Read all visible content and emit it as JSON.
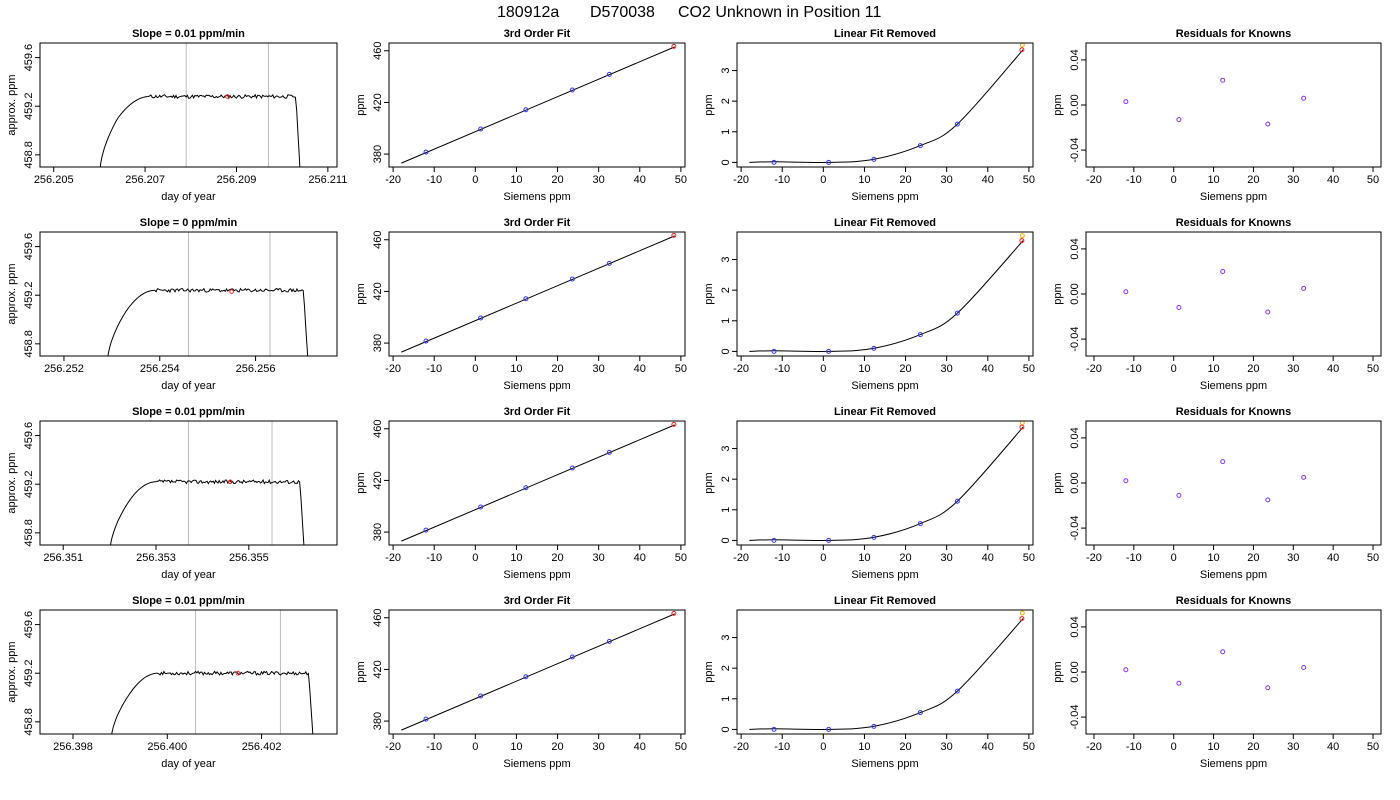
{
  "header": {
    "run_id": "180912a",
    "tank_id": "D570038",
    "description": "CO2 Unknown in Position  11"
  },
  "colors": {
    "curve": "#000000",
    "known_points": "#3333ff",
    "residual_points": "#8833ff",
    "unknown_fit": "#ff2222",
    "unknown_point": "#ffb000",
    "vertical_lines": "#bbbbbb",
    "frame": "#000000"
  },
  "chart_data": [
    {
      "type": "line",
      "panel": "trace",
      "row": 0,
      "title": "Slope =  0.01  ppm/min",
      "xlabel": "day of year",
      "ylabel": "approx. ppm",
      "xlim": [
        256.2047,
        256.2112
      ],
      "ylim": [
        458.7,
        459.72
      ],
      "xticks": [
        256.205,
        256.207,
        256.209,
        256.211
      ],
      "xtick_labels": [
        "256.205",
        "256.207",
        "256.209",
        "256.211"
      ],
      "yticks": [
        458.8,
        459.2,
        459.6
      ],
      "ytick_labels": [
        "458.8",
        "459.2",
        "459.6"
      ],
      "vlines": [
        256.2079,
        256.2097
      ],
      "marker": {
        "x": 256.2088,
        "y": 459.28
      },
      "trace": {
        "start": 256.206,
        "rise_end": 256.2064,
        "plateau_start": 256.2071,
        "plateau_end": 256.2103,
        "end": 256.2104,
        "low": 458.62,
        "shoulder": 459.1,
        "plateau": 459.28,
        "seed": 11
      }
    },
    {
      "type": "line",
      "panel": "fit",
      "row": 0,
      "title": "3rd Order Fit",
      "xlabel": "Siemens ppm",
      "ylabel": "ppm",
      "xlim": [
        -21,
        51
      ],
      "ylim": [
        370,
        466
      ],
      "xticks": [
        -20,
        -10,
        0,
        10,
        20,
        30,
        40,
        50
      ],
      "xtick_labels": [
        "-20",
        "-10",
        "0",
        "10",
        "20",
        "30",
        "40",
        "50"
      ],
      "yticks": [
        380,
        420,
        460
      ],
      "ytick_labels": [
        "380",
        "420",
        "460"
      ],
      "line": {
        "x1": -18,
        "y1": 373,
        "x2": 48.5,
        "y2": 463
      },
      "known_x": [
        -12,
        1.3,
        12.3,
        23.6,
        32.6
      ],
      "known_y": [
        381.5,
        399.4,
        414.3,
        429.6,
        441.7
      ],
      "unknown": {
        "x": 48.3,
        "y": 463.4
      }
    },
    {
      "type": "line",
      "panel": "linear_removed",
      "row": 0,
      "title": "Linear Fit Removed",
      "xlabel": "Siemens ppm",
      "ylabel": "ppm",
      "xlim": [
        -21,
        51
      ],
      "ylim": [
        -0.15,
        3.9
      ],
      "xticks": [
        -20,
        -10,
        0,
        10,
        20,
        30,
        40,
        50
      ],
      "xtick_labels": [
        "-20",
        "-10",
        "0",
        "10",
        "20",
        "30",
        "40",
        "50"
      ],
      "yticks": [
        0,
        1,
        2,
        3
      ],
      "ytick_labels": [
        "0",
        "1",
        "2",
        "3"
      ],
      "curve_x": [
        -18,
        -12,
        1.3,
        12.3,
        23.6,
        32.6,
        48.6
      ],
      "curve_y": [
        0.0,
        0.02,
        0.0,
        0.1,
        0.55,
        1.25,
        3.68
      ],
      "known_x": [
        -12,
        1.3,
        12.3,
        23.6,
        32.6
      ],
      "known_y": [
        0.0,
        0.0,
        0.1,
        0.55,
        1.25
      ],
      "unknown": {
        "x": 48.3,
        "y": 3.68
      },
      "unknown_open": {
        "x": 48.4,
        "y": 3.83
      }
    },
    {
      "type": "scatter",
      "panel": "residuals",
      "row": 0,
      "title": "Residuals for Knowns",
      "xlabel": "Siemens ppm",
      "ylabel": "ppm",
      "xlim": [
        -22,
        52
      ],
      "ylim": [
        -0.055,
        0.055
      ],
      "xticks": [
        -20,
        -10,
        0,
        10,
        20,
        30,
        40,
        50
      ],
      "xtick_labels": [
        "-20",
        "-10",
        "0",
        "10",
        "20",
        "30",
        "40",
        "50"
      ],
      "yticks": [
        -0.04,
        0.0,
        0.04
      ],
      "ytick_labels": [
        "-0.04",
        "0.00",
        "0.04"
      ],
      "x": [
        -12,
        1.3,
        12.3,
        23.6,
        32.6
      ],
      "y": [
        0.003,
        -0.013,
        0.022,
        -0.017,
        0.006
      ]
    },
    {
      "type": "line",
      "panel": "trace",
      "row": 1,
      "title": "Slope =  0  ppm/min",
      "xlabel": "day of year",
      "ylabel": "approx. ppm",
      "xlim": [
        256.2515,
        256.2577
      ],
      "ylim": [
        458.7,
        459.72
      ],
      "xticks": [
        256.252,
        256.254,
        256.256
      ],
      "xtick_labels": [
        "256.252",
        "256.254",
        "256.256"
      ],
      "vlines": [
        256.2546,
        256.2563
      ],
      "marker": {
        "x": 256.2555,
        "y": 459.23
      },
      "yticks": [
        458.8,
        459.2,
        459.6
      ],
      "ytick_labels": [
        "458.8",
        "459.2",
        "459.6"
      ],
      "trace": {
        "start": 256.2529,
        "rise_end": 256.2533,
        "plateau_start": 256.2539,
        "plateau_end": 256.257,
        "end": 256.2571,
        "low": 458.62,
        "shoulder": 459.07,
        "plateau": 459.24,
        "seed": 23
      }
    },
    {
      "type": "line",
      "panel": "fit",
      "row": 1,
      "title": "3rd Order Fit",
      "xlabel": "Siemens ppm",
      "ylabel": "ppm",
      "xlim": [
        -21,
        51
      ],
      "ylim": [
        370,
        466
      ],
      "xticks": [
        -20,
        -10,
        0,
        10,
        20,
        30,
        40,
        50
      ],
      "xtick_labels": [
        "-20",
        "-10",
        "0",
        "10",
        "20",
        "30",
        "40",
        "50"
      ],
      "yticks": [
        380,
        420,
        460
      ],
      "ytick_labels": [
        "380",
        "420",
        "460"
      ],
      "line": {
        "x1": -18,
        "y1": 373,
        "x2": 48.5,
        "y2": 463
      },
      "known_x": [
        -12,
        1.3,
        12.3,
        23.6,
        32.6
      ],
      "known_y": [
        381.5,
        399.4,
        414.3,
        429.6,
        441.7
      ],
      "unknown": {
        "x": 48.3,
        "y": 463.4
      }
    },
    {
      "type": "line",
      "panel": "linear_removed",
      "row": 1,
      "title": "Linear Fit Removed",
      "xlabel": "Siemens ppm",
      "ylabel": "ppm",
      "xlim": [
        -21,
        51
      ],
      "ylim": [
        -0.15,
        3.9
      ],
      "xticks": [
        -20,
        -10,
        0,
        10,
        20,
        30,
        40,
        50
      ],
      "xtick_labels": [
        "-20",
        "-10",
        "0",
        "10",
        "20",
        "30",
        "40",
        "50"
      ],
      "yticks": [
        0,
        1,
        2,
        3
      ],
      "ytick_labels": [
        "0",
        "1",
        "2",
        "3"
      ],
      "curve_x": [
        -18,
        -12,
        1.3,
        12.3,
        23.6,
        32.6,
        48.6
      ],
      "curve_y": [
        0.0,
        0.02,
        0.0,
        0.1,
        0.55,
        1.25,
        3.62
      ],
      "known_x": [
        -12,
        1.3,
        12.3,
        23.6,
        32.6
      ],
      "known_y": [
        0.0,
        0.0,
        0.1,
        0.55,
        1.25
      ],
      "unknown": {
        "x": 48.3,
        "y": 3.62
      },
      "unknown_open": {
        "x": 48.4,
        "y": 3.78
      }
    },
    {
      "type": "scatter",
      "panel": "residuals",
      "row": 1,
      "title": "Residuals for Knowns",
      "xlabel": "Siemens ppm",
      "ylabel": "ppm",
      "xlim": [
        -22,
        52
      ],
      "ylim": [
        -0.055,
        0.055
      ],
      "xticks": [
        -20,
        -10,
        0,
        10,
        20,
        30,
        40,
        50
      ],
      "xtick_labels": [
        "-20",
        "-10",
        "0",
        "10",
        "20",
        "30",
        "40",
        "50"
      ],
      "yticks": [
        -0.04,
        0.0,
        0.04
      ],
      "ytick_labels": [
        "-0.04",
        "0.00",
        "0.04"
      ],
      "x": [
        -12,
        1.3,
        12.3,
        23.6,
        32.6
      ],
      "y": [
        0.002,
        -0.012,
        0.02,
        -0.016,
        0.005
      ]
    },
    {
      "type": "line",
      "panel": "trace",
      "row": 2,
      "title": "Slope =  0.01  ppm/min",
      "xlabel": "day of year",
      "ylabel": "approx. ppm",
      "xlim": [
        256.3505,
        256.3569
      ],
      "ylim": [
        458.7,
        459.72
      ],
      "xticks": [
        256.351,
        256.353,
        256.355
      ],
      "xtick_labels": [
        "256.351",
        "256.353",
        "256.355"
      ],
      "vlines": [
        256.3537,
        256.3555
      ],
      "marker": {
        "x": 256.3546,
        "y": 459.22
      },
      "yticks": [
        458.8,
        459.2,
        459.6
      ],
      "ytick_labels": [
        "458.8",
        "459.2",
        "459.6"
      ],
      "trace": {
        "start": 256.352,
        "rise_end": 256.3524,
        "plateau_start": 256.353,
        "plateau_end": 256.3561,
        "end": 256.3562,
        "low": 458.62,
        "shoulder": 459.05,
        "plateau": 459.22,
        "seed": 37
      }
    },
    {
      "type": "line",
      "panel": "fit",
      "row": 2,
      "title": "3rd Order Fit",
      "xlabel": "Siemens ppm",
      "ylabel": "ppm",
      "xlim": [
        -21,
        51
      ],
      "ylim": [
        370,
        466
      ],
      "xticks": [
        -20,
        -10,
        0,
        10,
        20,
        30,
        40,
        50
      ],
      "xtick_labels": [
        "-20",
        "-10",
        "0",
        "10",
        "20",
        "30",
        "40",
        "50"
      ],
      "yticks": [
        380,
        420,
        460
      ],
      "ytick_labels": [
        "380",
        "420",
        "460"
      ],
      "line": {
        "x1": -18,
        "y1": 373,
        "x2": 48.5,
        "y2": 463
      },
      "known_x": [
        -12,
        1.3,
        12.3,
        23.6,
        32.6
      ],
      "known_y": [
        381.5,
        399.4,
        414.3,
        429.6,
        441.7
      ],
      "unknown": {
        "x": 48.3,
        "y": 463.4
      }
    },
    {
      "type": "line",
      "panel": "linear_removed",
      "row": 2,
      "title": "Linear Fit Removed",
      "xlabel": "Siemens ppm",
      "ylabel": "ppm",
      "xlim": [
        -21,
        51
      ],
      "ylim": [
        -0.15,
        3.9
      ],
      "xticks": [
        -20,
        -10,
        0,
        10,
        20,
        30,
        40,
        50
      ],
      "xtick_labels": [
        "-20",
        "-10",
        "0",
        "10",
        "20",
        "30",
        "40",
        "50"
      ],
      "yticks": [
        0,
        1,
        2,
        3
      ],
      "ytick_labels": [
        "0",
        "1",
        "2",
        "3"
      ],
      "curve_x": [
        -18,
        -12,
        1.3,
        12.3,
        23.6,
        32.6,
        48.6
      ],
      "curve_y": [
        0.0,
        0.02,
        0.0,
        0.1,
        0.55,
        1.28,
        3.7
      ],
      "known_x": [
        -12,
        1.3,
        12.3,
        23.6,
        32.6
      ],
      "known_y": [
        0.0,
        0.0,
        0.1,
        0.55,
        1.28
      ],
      "unknown": {
        "x": 48.3,
        "y": 3.7
      },
      "unknown_open": {
        "x": 48.4,
        "y": 3.84
      }
    },
    {
      "type": "scatter",
      "panel": "residuals",
      "row": 2,
      "title": "Residuals for Knowns",
      "xlabel": "Siemens ppm",
      "ylabel": "ppm",
      "xlim": [
        -22,
        52
      ],
      "ylim": [
        -0.055,
        0.055
      ],
      "xticks": [
        -20,
        -10,
        0,
        10,
        20,
        30,
        40,
        50
      ],
      "xtick_labels": [
        "-20",
        "-10",
        "0",
        "10",
        "20",
        "30",
        "40",
        "50"
      ],
      "yticks": [
        -0.04,
        0.0,
        0.04
      ],
      "ytick_labels": [
        "-0.04",
        "0.00",
        "0.04"
      ],
      "x": [
        -12,
        1.3,
        12.3,
        23.6,
        32.6
      ],
      "y": [
        0.002,
        -0.011,
        0.019,
        -0.015,
        0.005
      ]
    },
    {
      "type": "line",
      "panel": "trace",
      "row": 3,
      "title": "Slope =  0.01  ppm/min",
      "xlabel": "day of year",
      "ylabel": "approx. ppm",
      "xlim": [
        256.3973,
        256.4036
      ],
      "ylim": [
        458.7,
        459.72
      ],
      "xticks": [
        256.398,
        256.4,
        256.402
      ],
      "xtick_labels": [
        "256.398",
        "256.400",
        "256.402"
      ],
      "vlines": [
        256.4006,
        256.4024
      ],
      "marker": {
        "x": 256.4015,
        "y": 459.2
      },
      "yticks": [
        458.8,
        459.2,
        459.6
      ],
      "ytick_labels": [
        "458.8",
        "459.2",
        "459.6"
      ],
      "trace": {
        "start": 256.3988,
        "rise_end": 256.3992,
        "plateau_start": 256.3998,
        "plateau_end": 256.403,
        "end": 256.4031,
        "low": 458.62,
        "shoulder": 459.03,
        "plateau": 459.2,
        "seed": 53
      }
    },
    {
      "type": "line",
      "panel": "fit",
      "row": 3,
      "title": "3rd Order Fit",
      "xlabel": "Siemens ppm",
      "ylabel": "ppm",
      "xlim": [
        -21,
        51
      ],
      "ylim": [
        370,
        466
      ],
      "xticks": [
        -20,
        -10,
        0,
        10,
        20,
        30,
        40,
        50
      ],
      "xtick_labels": [
        "-20",
        "-10",
        "0",
        "10",
        "20",
        "30",
        "40",
        "50"
      ],
      "yticks": [
        380,
        420,
        460
      ],
      "ytick_labels": [
        "380",
        "420",
        "460"
      ],
      "line": {
        "x1": -18,
        "y1": 373,
        "x2": 48.5,
        "y2": 463
      },
      "known_x": [
        -12,
        1.3,
        12.3,
        23.6,
        32.6
      ],
      "known_y": [
        381.5,
        399.4,
        414.3,
        429.6,
        441.7
      ],
      "unknown": {
        "x": 48.3,
        "y": 463.4
      }
    },
    {
      "type": "line",
      "panel": "linear_removed",
      "row": 3,
      "title": "Linear Fit Removed",
      "xlabel": "Siemens ppm",
      "ylabel": "ppm",
      "xlim": [
        -21,
        51
      ],
      "ylim": [
        -0.15,
        3.9
      ],
      "xticks": [
        -20,
        -10,
        0,
        10,
        20,
        30,
        40,
        50
      ],
      "xtick_labels": [
        "-20",
        "-10",
        "0",
        "10",
        "20",
        "30",
        "40",
        "50"
      ],
      "yticks": [
        0,
        1,
        2,
        3
      ],
      "ytick_labels": [
        "0",
        "1",
        "2",
        "3"
      ],
      "curve_x": [
        -18,
        -12,
        1.3,
        12.3,
        23.6,
        32.6,
        48.6
      ],
      "curve_y": [
        0.0,
        0.02,
        0.0,
        0.1,
        0.55,
        1.25,
        3.62
      ],
      "known_x": [
        -12,
        1.3,
        12.3,
        23.6,
        32.6
      ],
      "known_y": [
        0.0,
        0.0,
        0.1,
        0.55,
        1.25
      ],
      "unknown": {
        "x": 48.3,
        "y": 3.62
      },
      "unknown_open": {
        "x": 48.4,
        "y": 3.8
      }
    },
    {
      "type": "scatter",
      "panel": "residuals",
      "row": 3,
      "title": "Residuals for Knowns",
      "xlabel": "Siemens ppm",
      "ylabel": "ppm",
      "xlim": [
        -22,
        52
      ],
      "ylim": [
        -0.055,
        0.055
      ],
      "xticks": [
        -20,
        -10,
        0,
        10,
        20,
        30,
        40,
        50
      ],
      "xtick_labels": [
        "-20",
        "-10",
        "0",
        "10",
        "20",
        "30",
        "40",
        "50"
      ],
      "yticks": [
        -0.04,
        0.0,
        0.04
      ],
      "ytick_labels": [
        "-0.04",
        "0.00",
        "0.04"
      ],
      "x": [
        -12,
        1.3,
        12.3,
        23.6,
        32.6
      ],
      "y": [
        0.002,
        -0.01,
        0.018,
        -0.014,
        0.004
      ]
    }
  ]
}
